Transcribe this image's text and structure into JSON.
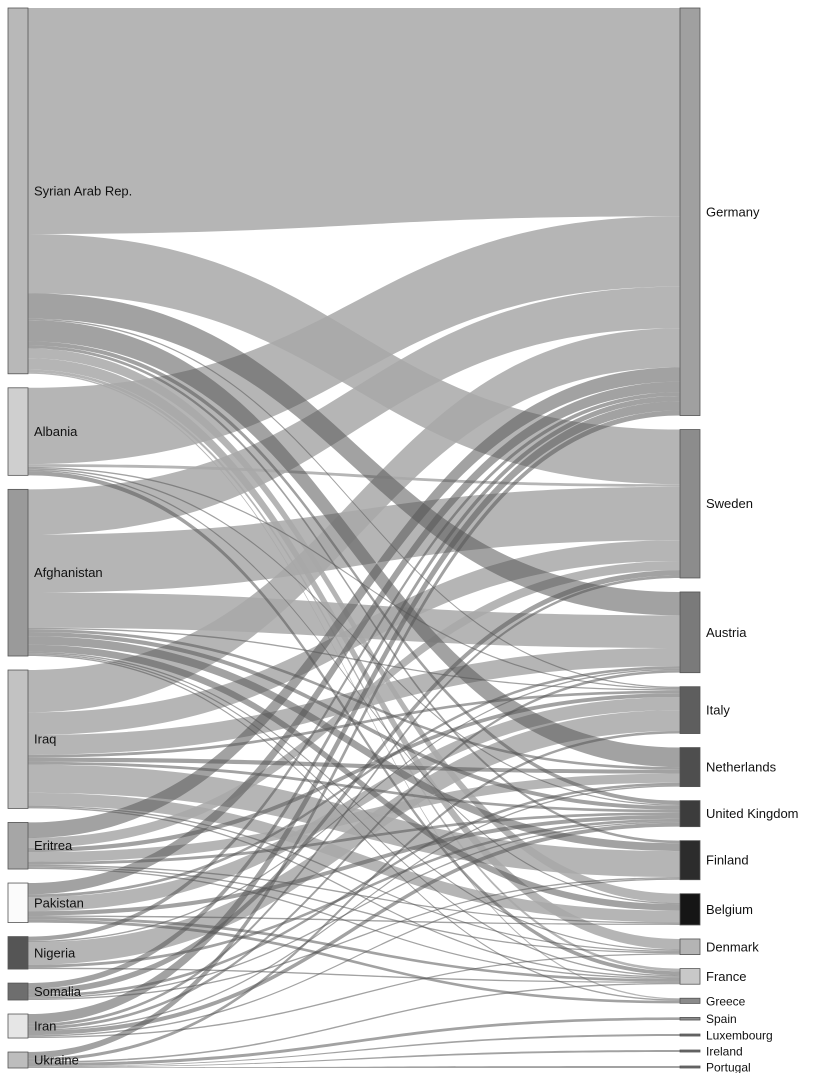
{
  "chart_data": {
    "type": "sankey",
    "colors": {
      "link": "#a8a8a8",
      "link_dark": "#555555"
    },
    "sources": [
      {
        "id": "syria",
        "label": "Syrian Arab Rep.",
        "color": "#b8b8b8"
      },
      {
        "id": "albania",
        "label": "Albania",
        "color": "#cfcfcf"
      },
      {
        "id": "afghanistan",
        "label": "Afghanistan",
        "color": "#9a9a9a"
      },
      {
        "id": "iraq",
        "label": "Iraq",
        "color": "#c2c2c2"
      },
      {
        "id": "eritrea",
        "label": "Eritrea",
        "color": "#a6a6a6"
      },
      {
        "id": "pakistan",
        "label": "Pakistan",
        "color": "#fbfbfb"
      },
      {
        "id": "nigeria",
        "label": "Nigeria",
        "color": "#555555"
      },
      {
        "id": "somalia",
        "label": "Somalia",
        "color": "#6e6e6e"
      },
      {
        "id": "iran",
        "label": "Iran",
        "color": "#e6e6e6"
      },
      {
        "id": "ukraine",
        "label": "Ukraine",
        "color": "#bdbdbd"
      }
    ],
    "targets": [
      {
        "id": "germany",
        "label": "Germany",
        "color": "#a0a0a0"
      },
      {
        "id": "sweden",
        "label": "Sweden",
        "color": "#8c8c8c"
      },
      {
        "id": "austria",
        "label": "Austria",
        "color": "#7a7a7a"
      },
      {
        "id": "italy",
        "label": "Italy",
        "color": "#5e5e5e"
      },
      {
        "id": "netherlands",
        "label": "Netherlands",
        "color": "#4e4e4e"
      },
      {
        "id": "uk",
        "label": "United Kingdom",
        "color": "#3c3c3c"
      },
      {
        "id": "finland",
        "label": "Finland",
        "color": "#2c2c2c"
      },
      {
        "id": "belgium",
        "label": "Belgium",
        "color": "#151515"
      },
      {
        "id": "denmark",
        "label": "Denmark",
        "color": "#b4b4b4"
      },
      {
        "id": "france",
        "label": "France",
        "color": "#c8c8c8"
      },
      {
        "id": "greece",
        "label": "Greece",
        "color": "#8a8a8a"
      },
      {
        "id": "spain",
        "label": "Spain",
        "color": "#8a8a8a"
      },
      {
        "id": "luxembourg",
        "label": "Luxembourg",
        "color": "#6a6a6a"
      },
      {
        "id": "ireland",
        "label": "Ireland",
        "color": "#6a6a6a"
      },
      {
        "id": "portugal",
        "label": "Portugal",
        "color": "#6a6a6a"
      }
    ],
    "links": [
      {
        "source": "syria",
        "target": "germany",
        "value": 160,
        "dark": false
      },
      {
        "source": "syria",
        "target": "sweden",
        "value": 42,
        "dark": false
      },
      {
        "source": "syria",
        "target": "austria",
        "value": 18,
        "dark": true
      },
      {
        "source": "syria",
        "target": "netherlands",
        "value": 15,
        "dark": true
      },
      {
        "source": "syria",
        "target": "denmark",
        "value": 8,
        "dark": false
      },
      {
        "source": "syria",
        "target": "belgium",
        "value": 7,
        "dark": false
      },
      {
        "source": "syria",
        "target": "uk",
        "value": 3,
        "dark": true
      },
      {
        "source": "syria",
        "target": "finland",
        "value": 2,
        "dark": true
      },
      {
        "source": "syria",
        "target": "france",
        "value": 2,
        "dark": false
      },
      {
        "source": "syria",
        "target": "italy",
        "value": 1,
        "dark": true
      },
      {
        "source": "syria",
        "target": "greece",
        "value": 1,
        "dark": false
      },
      {
        "source": "albania",
        "target": "germany",
        "value": 54,
        "dark": false
      },
      {
        "source": "albania",
        "target": "sweden",
        "value": 2,
        "dark": false
      },
      {
        "source": "albania",
        "target": "france",
        "value": 3,
        "dark": true
      },
      {
        "source": "albania",
        "target": "italy",
        "value": 1,
        "dark": true
      },
      {
        "source": "albania",
        "target": "uk",
        "value": 1,
        "dark": true
      },
      {
        "source": "albania",
        "target": "belgium",
        "value": 1,
        "dark": true
      },
      {
        "source": "afghanistan",
        "target": "germany",
        "value": 32,
        "dark": false
      },
      {
        "source": "afghanistan",
        "target": "sweden",
        "value": 41,
        "dark": false
      },
      {
        "source": "afghanistan",
        "target": "austria",
        "value": 25,
        "dark": false
      },
      {
        "source": "afghanistan",
        "target": "finland",
        "value": 6,
        "dark": true
      },
      {
        "source": "afghanistan",
        "target": "belgium",
        "value": 5,
        "dark": true
      },
      {
        "source": "afghanistan",
        "target": "uk",
        "value": 3,
        "dark": true
      },
      {
        "source": "afghanistan",
        "target": "netherlands",
        "value": 2,
        "dark": true
      },
      {
        "source": "afghanistan",
        "target": "italy",
        "value": 1,
        "dark": true
      },
      {
        "source": "afghanistan",
        "target": "denmark",
        "value": 1,
        "dark": true
      },
      {
        "source": "afghanistan",
        "target": "france",
        "value": 1,
        "dark": true
      },
      {
        "source": "afghanistan",
        "target": "greece",
        "value": 1,
        "dark": true
      },
      {
        "source": "iraq",
        "target": "germany",
        "value": 30,
        "dark": false
      },
      {
        "source": "iraq",
        "target": "finland",
        "value": 20,
        "dark": false
      },
      {
        "source": "iraq",
        "target": "sweden",
        "value": 16,
        "dark": false
      },
      {
        "source": "iraq",
        "target": "austria",
        "value": 14,
        "dark": false
      },
      {
        "source": "iraq",
        "target": "belgium",
        "value": 9,
        "dark": false
      },
      {
        "source": "iraq",
        "target": "netherlands",
        "value": 3,
        "dark": true
      },
      {
        "source": "iraq",
        "target": "uk",
        "value": 2,
        "dark": true
      },
      {
        "source": "iraq",
        "target": "italy",
        "value": 2,
        "dark": true
      },
      {
        "source": "iraq",
        "target": "denmark",
        "value": 1,
        "dark": true
      },
      {
        "source": "iraq",
        "target": "france",
        "value": 1,
        "dark": true
      },
      {
        "source": "eritrea",
        "target": "germany",
        "value": 11,
        "dark": true
      },
      {
        "source": "eritrea",
        "target": "netherlands",
        "value": 7,
        "dark": false
      },
      {
        "source": "eritrea",
        "target": "sweden",
        "value": 7,
        "dark": false
      },
      {
        "source": "eritrea",
        "target": "italy",
        "value": 3,
        "dark": true
      },
      {
        "source": "eritrea",
        "target": "uk",
        "value": 2,
        "dark": true
      },
      {
        "source": "eritrea",
        "target": "denmark",
        "value": 1,
        "dark": true
      },
      {
        "source": "eritrea",
        "target": "france",
        "value": 1,
        "dark": true
      },
      {
        "source": "eritrea",
        "target": "belgium",
        "value": 1,
        "dark": true
      },
      {
        "source": "pakistan",
        "target": "italy",
        "value": 10,
        "dark": false
      },
      {
        "source": "pakistan",
        "target": "germany",
        "value": 8,
        "dark": true
      },
      {
        "source": "pakistan",
        "target": "uk",
        "value": 3,
        "dark": true
      },
      {
        "source": "pakistan",
        "target": "austria",
        "value": 2,
        "dark": true
      },
      {
        "source": "pakistan",
        "target": "greece",
        "value": 2,
        "dark": true
      },
      {
        "source": "pakistan",
        "target": "france",
        "value": 2,
        "dark": true
      },
      {
        "source": "pakistan",
        "target": "belgium",
        "value": 1,
        "dark": true
      },
      {
        "source": "nigeria",
        "target": "italy",
        "value": 16,
        "dark": false
      },
      {
        "source": "nigeria",
        "target": "germany",
        "value": 3,
        "dark": true
      },
      {
        "source": "nigeria",
        "target": "uk",
        "value": 2,
        "dark": true
      },
      {
        "source": "nigeria",
        "target": "france",
        "value": 1,
        "dark": true
      },
      {
        "source": "nigeria",
        "target": "austria",
        "value": 1,
        "dark": true
      },
      {
        "source": "somalia",
        "target": "sweden",
        "value": 4,
        "dark": true
      },
      {
        "source": "somalia",
        "target": "germany",
        "value": 4,
        "dark": true
      },
      {
        "source": "somalia",
        "target": "netherlands",
        "value": 2,
        "dark": true
      },
      {
        "source": "somalia",
        "target": "uk",
        "value": 1,
        "dark": true
      },
      {
        "source": "somalia",
        "target": "finland",
        "value": 1,
        "dark": true
      },
      {
        "source": "iran",
        "target": "germany",
        "value": 7,
        "dark": true
      },
      {
        "source": "iran",
        "target": "uk",
        "value": 3,
        "dark": true
      },
      {
        "source": "iran",
        "target": "sweden",
        "value": 2,
        "dark": true
      },
      {
        "source": "iran",
        "target": "austria",
        "value": 2,
        "dark": true
      },
      {
        "source": "iran",
        "target": "netherlands",
        "value": 1,
        "dark": true
      },
      {
        "source": "iran",
        "target": "finland",
        "value": 1,
        "dark": true
      },
      {
        "source": "iran",
        "target": "denmark",
        "value": 1,
        "dark": true
      },
      {
        "source": "ukraine",
        "target": "germany",
        "value": 4,
        "dark": true
      },
      {
        "source": "ukraine",
        "target": "italy",
        "value": 2,
        "dark": true
      },
      {
        "source": "ukraine",
        "target": "spain",
        "value": 2,
        "dark": true
      },
      {
        "source": "ukraine",
        "target": "france",
        "value": 1,
        "dark": true
      },
      {
        "source": "ukraine",
        "target": "luxembourg",
        "value": 0.4,
        "dark": true
      },
      {
        "source": "ukraine",
        "target": "ireland",
        "value": 0.4,
        "dark": true
      },
      {
        "source": "ukraine",
        "target": "portugal",
        "value": 0.4,
        "dark": true
      }
    ]
  }
}
